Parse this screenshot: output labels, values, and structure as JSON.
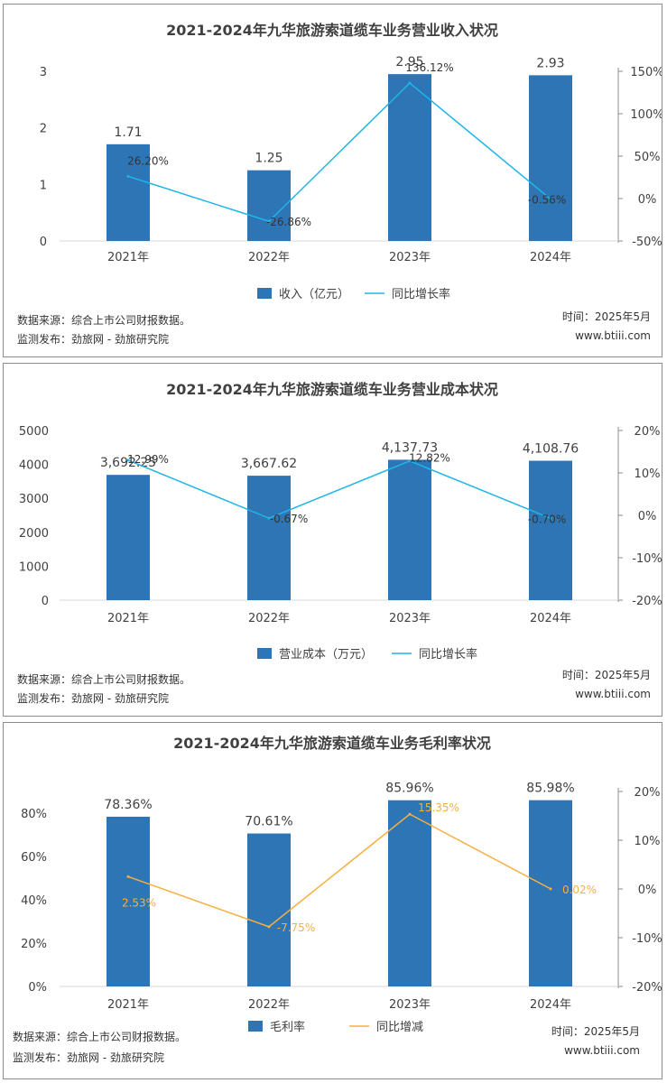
{
  "chart_data": [
    {
      "type": "bar",
      "title": "2021-2024年九华旅游索道缆车业务营业收入状况",
      "categories": [
        "2021年",
        "2022年",
        "2023年",
        "2024年"
      ],
      "series": [
        {
          "name": "收入（亿元）",
          "axis": "left",
          "values": [
            1.71,
            1.25,
            2.95,
            2.93
          ],
          "labels": [
            "1.71",
            "1.25",
            "2.95",
            "2.93"
          ]
        },
        {
          "name": "同比增长率",
          "axis": "right",
          "kind": "line",
          "values": [
            26.2,
            -26.86,
            136.12,
            -0.56
          ],
          "labels": [
            "26.20%",
            "-26.86%",
            "136.12%",
            "-0.56%"
          ]
        }
      ],
      "ylim": [
        0,
        3
      ],
      "yticks": [
        "0",
        "1",
        "2",
        "3"
      ],
      "y2lim": [
        -50,
        150
      ],
      "y2ticks": [
        "-50%",
        "0%",
        "50%",
        "100%",
        "150%"
      ],
      "colors": {
        "bar": "#2e75b6",
        "line": "#1fb5e6",
        "line_label": "#333333"
      }
    },
    {
      "type": "bar",
      "title": "2021-2024年九华旅游索道缆车业务营业成本状况",
      "categories": [
        "2021年",
        "2022年",
        "2023年",
        "2024年"
      ],
      "series": [
        {
          "name": "营业成本（万元）",
          "axis": "left",
          "values": [
            3692.25,
            3667.62,
            4137.73,
            4108.76
          ],
          "labels": [
            "3,692.25",
            "3,667.62",
            "4,137.73",
            "4,108.76"
          ]
        },
        {
          "name": "同比增长率",
          "axis": "right",
          "kind": "line",
          "values": [
            12.99,
            -0.67,
            12.82,
            -0.7
          ],
          "labels": [
            "12.99%",
            "-0.67%",
            "12.82%",
            "-0.70%"
          ]
        }
      ],
      "ylim": [
        0,
        5000
      ],
      "yticks": [
        "0",
        "1000",
        "2000",
        "3000",
        "4000",
        "5000"
      ],
      "y2lim": [
        -20,
        20
      ],
      "y2ticks": [
        "-20%",
        "-10%",
        "0%",
        "10%",
        "20%"
      ],
      "colors": {
        "bar": "#2e75b6",
        "line": "#1fb5e6",
        "line_label": "#333333"
      }
    },
    {
      "type": "bar",
      "title": "2021-2024年九华旅游索道缆车业务毛利率状况",
      "categories": [
        "2021年",
        "2022年",
        "2023年",
        "2024年"
      ],
      "series": [
        {
          "name": "毛利率",
          "axis": "left",
          "values": [
            78.36,
            70.61,
            85.96,
            85.98
          ],
          "labels": [
            "78.36%",
            "70.61%",
            "85.96%",
            "85.98%"
          ]
        },
        {
          "name": "同比增减",
          "axis": "right",
          "kind": "line",
          "values": [
            2.53,
            -7.75,
            15.35,
            0.02
          ],
          "labels": [
            "2.53%",
            "-7.75%",
            "15.35%",
            "0.02%"
          ]
        }
      ],
      "ylim": [
        0,
        90
      ],
      "yticks": [
        "0%",
        "20%",
        "40%",
        "60%",
        "80%"
      ],
      "y2lim": [
        -20,
        20
      ],
      "y2ticks": [
        "-20%",
        "-10%",
        "0%",
        "10%",
        "20%"
      ],
      "colors": {
        "bar": "#2e75b6",
        "line": "#f5b041",
        "line_label": "#f5b041"
      }
    }
  ],
  "footers": [
    {
      "source": "数据来源：综合上市公司财报数据。",
      "publisher": "监测发布：劲旅网 - 劲旅研究院",
      "time": "时间：2025年5月",
      "site": "www.btiii.com"
    },
    {
      "source": "数据来源：综合上市公司财报数据。",
      "publisher": "监测发布：劲旅网 - 劲旅研究院",
      "time": "时间：2025年5月",
      "site": "www.btiii.com"
    },
    {
      "source": "数据来源：综合上市公司财报数据。",
      "publisher": "监测发布：劲旅网 - 劲旅研究院",
      "time": "时间：2025年5月",
      "site": "www.btiii.com"
    }
  ]
}
